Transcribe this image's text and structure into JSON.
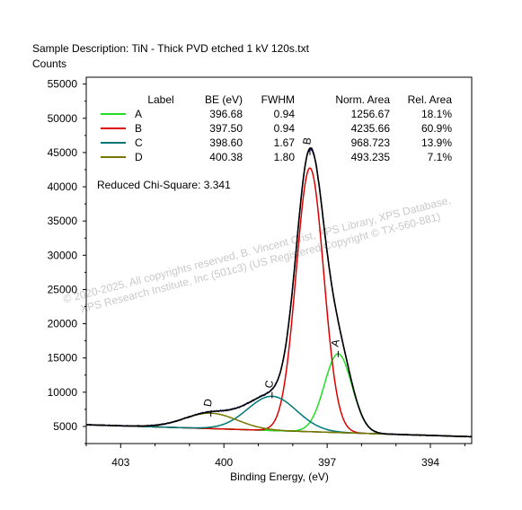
{
  "header": {
    "description": "Sample Description:  TiN - Thick PVD etched 1 kV 120s.txt",
    "ylabel": "Counts"
  },
  "watermark": {
    "line1": "©  2020-2025,  All copyrights reserved,   B. Vincent Crist,  XPS Library, XPS Database,",
    "line2": "XPS Research Institute, Inc (501c3)   (US Registered Copyright © TX-560-881)"
  },
  "chart_data": {
    "type": "line",
    "title": "",
    "xlabel": "Binding Energy, (eV)",
    "ylabel": "Counts",
    "x_reversed": true,
    "xlim": [
      404.0,
      392.8
    ],
    "ylim": [
      2500,
      56000
    ],
    "x_ticks": [
      403,
      400,
      397,
      394
    ],
    "x_tick_labels": [
      "403",
      "400",
      "397",
      "394"
    ],
    "y_ticks": [
      5000,
      10000,
      15000,
      20000,
      25000,
      30000,
      35000,
      40000,
      45000,
      50000,
      55000
    ],
    "y_tick_labels": [
      "5000",
      "10000",
      "15000",
      "20000",
      "25000",
      "30000",
      "35000",
      "40000",
      "45000",
      "50000",
      "55000"
    ],
    "grid": false,
    "legend_position": "top-left",
    "legend_headers": [
      "Label",
      "BE (eV)",
      "FWHM",
      "Norm. Area",
      "Rel. Area"
    ],
    "background": {
      "x": [
        404.0,
        392.8
      ],
      "y": [
        5250,
        3500
      ],
      "color": "#000000"
    },
    "series": [
      {
        "name": "A",
        "be": "396.68",
        "fwhm": "0.94",
        "norm_area": "1256.67",
        "rel_area": "18.1%",
        "center": 396.68,
        "width": 0.94,
        "height": 11500,
        "color": "#22dd22"
      },
      {
        "name": "B",
        "be": "397.50",
        "fwhm": "0.94",
        "norm_area": "4235.66",
        "rel_area": "60.9%",
        "center": 397.5,
        "width": 0.94,
        "height": 38500,
        "color": "#dd0000"
      },
      {
        "name": "C",
        "be": "398.60",
        "fwhm": "1.67",
        "norm_area": "968.723",
        "rel_area": "13.9%",
        "center": 398.6,
        "width": 1.67,
        "height": 5000,
        "color": "#007777"
      },
      {
        "name": "D",
        "be": "400.38",
        "fwhm": "1.80",
        "norm_area": "493.235",
        "rel_area": "7.1%",
        "center": 400.38,
        "width": 1.8,
        "height": 2250,
        "color": "#777700"
      }
    ],
    "envelope_color": "#000000",
    "raw_data_color": "#000099",
    "peak_labels": [
      {
        "text": "A",
        "x": 396.68,
        "y": 16300
      },
      {
        "text": "B",
        "x": 397.5,
        "y": 45800
      },
      {
        "text": "C",
        "x": 398.6,
        "y": 10300
      },
      {
        "text": "D",
        "x": 400.38,
        "y": 7600
      }
    ],
    "annotation": "Reduced Chi-Square: 3.341"
  }
}
